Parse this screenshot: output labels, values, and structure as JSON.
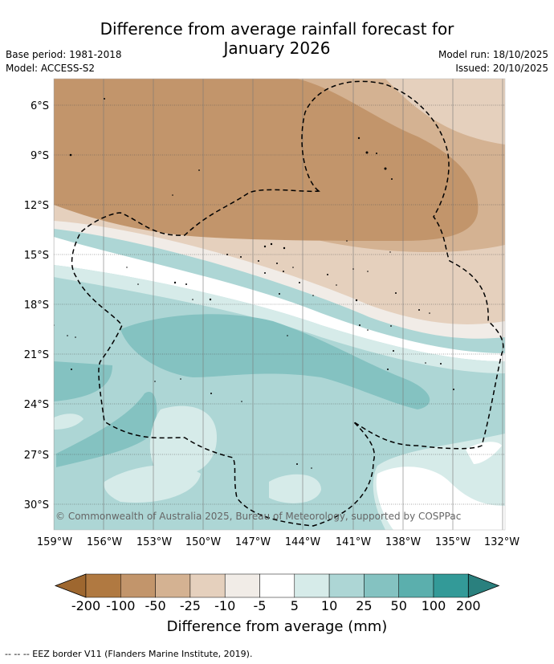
{
  "title_line1": "Difference from average rainfall forecast for",
  "title_line2": "January 2026",
  "meta_left": [
    "Base period: 1981-2018",
    "Model: ACCESS-S2"
  ],
  "meta_right": [
    "Model run: 18/10/2025",
    "Issued: 20/10/2025"
  ],
  "lat_labels": [
    "6°S",
    "9°S",
    "12°S",
    "15°S",
    "18°S",
    "21°S",
    "24°S",
    "27°S",
    "30°S"
  ],
  "lon_labels": [
    "159°W",
    "156°W",
    "153°W",
    "150°W",
    "147°W",
    "144°W",
    "141°W",
    "138°W",
    "135°W",
    "132°W"
  ],
  "copyright": "© Commonwealth of Australia 2025, Bureau of Meteorology, supported by COSPPac",
  "colorbar": {
    "title": "Difference from average (mm)",
    "tick_labels": [
      "-200",
      "-100",
      "-50",
      "-25",
      "-10",
      "-5",
      "5",
      "10",
      "25",
      "50",
      "100",
      "200"
    ],
    "colors": [
      "#b07941",
      "#c2956b",
      "#d4b292",
      "#e5d0bd",
      "#f1ece7",
      "#ffffff",
      "#d6ebe9",
      "#add6d5",
      "#84c2c1",
      "#5bafad",
      "#339a98"
    ],
    "low_arrow_color": "#9e672f",
    "high_arrow_color": "#2a807e"
  },
  "footer": "-- -- -- EEZ border V11 (Flanders Marine Institute, 2019)."
}
